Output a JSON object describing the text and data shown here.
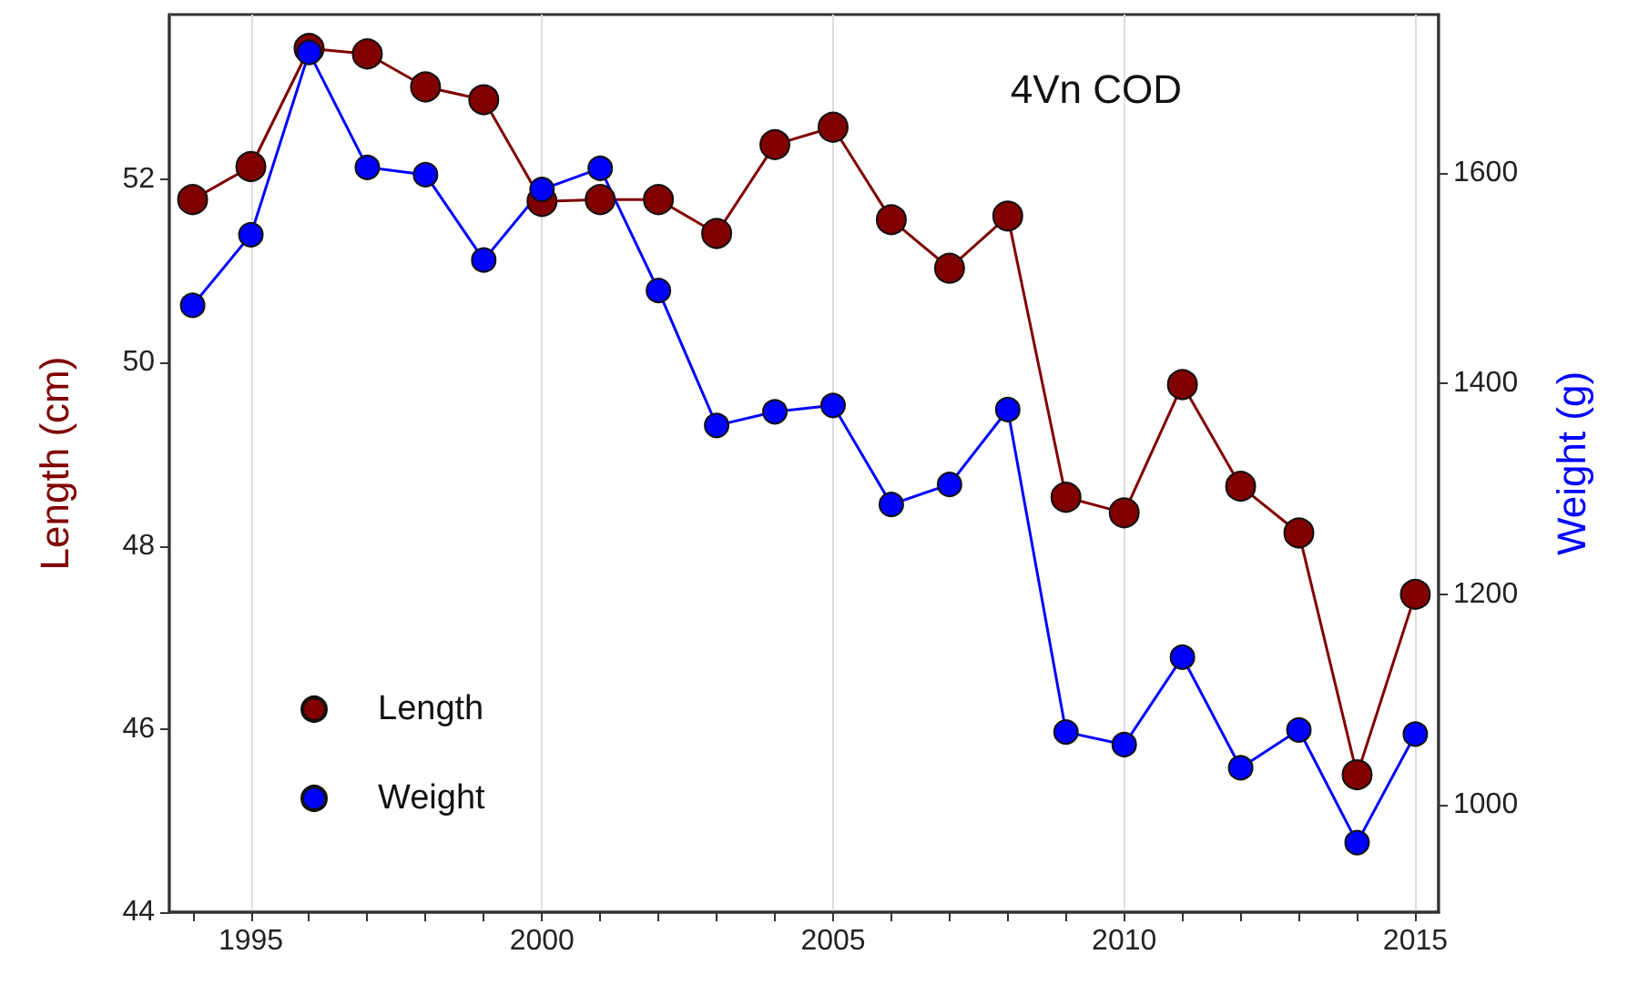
{
  "chart_data": {
    "type": "line",
    "title": "4Vn COD",
    "ylabel": "Length (cm)",
    "y2label": "Weight (g)",
    "x": [
      1994,
      1995,
      1996,
      1997,
      1998,
      1999,
      2000,
      2001,
      2002,
      2003,
      2004,
      2005,
      2006,
      2007,
      2008,
      2009,
      2010,
      2011,
      2012,
      2013,
      2014,
      2015
    ],
    "series": [
      {
        "name": "Length",
        "color": "#800000",
        "values": [
          51.78,
          52.14,
          53.43,
          53.37,
          53.01,
          52.87,
          51.76,
          51.78,
          51.78,
          51.41,
          52.38,
          52.57,
          51.56,
          51.03,
          51.6,
          48.53,
          48.36,
          49.76,
          48.65,
          48.14,
          45.5,
          47.47
        ]
      },
      {
        "name": "Weight",
        "color": "#0000ff",
        "axis": "y2",
        "values": [
          1474,
          1541,
          1714,
          1605,
          1598,
          1517,
          1584,
          1604,
          1488,
          1360,
          1373,
          1379,
          1285,
          1304,
          1375,
          1069,
          1057,
          1140,
          1035,
          1071,
          964,
          1067
        ]
      }
    ],
    "xlim": [
      1993.6,
      2015.4
    ],
    "xticks": [
      {
        "value": 1994,
        "label": null
      },
      1995,
      {
        "value": 1996,
        "label": null
      },
      {
        "value": 1997,
        "label": null
      },
      {
        "value": 1998,
        "label": null
      },
      {
        "value": 1999,
        "label": null
      },
      2000,
      {
        "value": 2001,
        "label": null
      },
      {
        "value": 2002,
        "label": null
      },
      {
        "value": 2003,
        "label": null
      },
      {
        "value": 2004,
        "label": null
      },
      2005,
      {
        "value": 2006,
        "label": null
      },
      {
        "value": 2007,
        "label": null
      },
      {
        "value": 2008,
        "label": null
      },
      {
        "value": 2009,
        "label": null
      },
      2010,
      {
        "value": 2011,
        "label": null
      },
      {
        "value": 2012,
        "label": null
      },
      {
        "value": 2013,
        "label": null
      },
      {
        "value": 2014,
        "label": null
      },
      2015
    ],
    "ylim": [
      44,
      53.8
    ],
    "yticks": [
      44,
      46,
      48,
      50,
      52
    ],
    "y2lim": [
      898,
      1750
    ],
    "y2ticks": [
      1000,
      1200,
      1400,
      1600
    ],
    "grid": "x",
    "legend": "bottom left",
    "marker": "circle",
    "line_style": "solid"
  }
}
